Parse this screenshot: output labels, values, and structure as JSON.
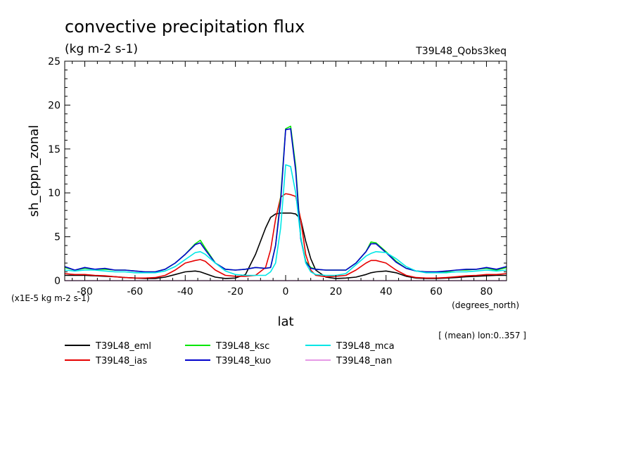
{
  "chart_data": {
    "type": "line",
    "title": "convective precipitation flux",
    "subtitle": "(kg m-2 s-1)",
    "run_label": "T39L48_Qobs3keq",
    "xlabel": "lat",
    "xunits": "(degrees_north)",
    "ylabel": "sh_cppn_zonal",
    "yscale_note": "(x1E-5 kg m-2 s-1)",
    "footnote": "[ (mean) lon:0..357 ]",
    "xlim": [
      -88,
      88
    ],
    "ylim": [
      0,
      25
    ],
    "x_ticks": [
      -80,
      -60,
      -40,
      -20,
      0,
      20,
      40,
      60,
      80
    ],
    "y_ticks": [
      0,
      5,
      10,
      15,
      20,
      25
    ],
    "x": [
      -88,
      -84,
      -80,
      -76,
      -72,
      -68,
      -64,
      -60,
      -56,
      -52,
      -48,
      -44,
      -40,
      -36,
      -34,
      -32,
      -28,
      -24,
      -20,
      -16,
      -12,
      -8,
      -6,
      -4,
      -2,
      0,
      2,
      4,
      6,
      8,
      10,
      12,
      16,
      20,
      24,
      28,
      32,
      34,
      36,
      40,
      44,
      48,
      52,
      56,
      60,
      64,
      68,
      72,
      76,
      80,
      84,
      88
    ],
    "series": [
      {
        "name": "T39L48_eml",
        "color": "#000000",
        "values": [
          0.6,
          0.6,
          0.6,
          0.55,
          0.5,
          0.45,
          0.35,
          0.3,
          0.25,
          0.25,
          0.4,
          0.7,
          1.0,
          1.1,
          1.0,
          0.8,
          0.4,
          0.25,
          0.3,
          0.7,
          3.0,
          6.0,
          7.2,
          7.6,
          7.7,
          7.7,
          7.7,
          7.6,
          7.0,
          4.5,
          2.5,
          1.2,
          0.4,
          0.25,
          0.3,
          0.4,
          0.7,
          0.9,
          1.0,
          1.1,
          0.9,
          0.5,
          0.3,
          0.25,
          0.25,
          0.3,
          0.35,
          0.45,
          0.5,
          0.55,
          0.6,
          0.6
        ]
      },
      {
        "name": "T39L48_ias",
        "color": "#e60000",
        "values": [
          0.8,
          0.7,
          0.7,
          0.6,
          0.55,
          0.45,
          0.35,
          0.3,
          0.3,
          0.35,
          0.6,
          1.2,
          2.0,
          2.3,
          2.4,
          2.2,
          1.2,
          0.6,
          0.5,
          0.5,
          0.6,
          1.5,
          3.5,
          7.0,
          9.5,
          9.9,
          9.8,
          9.6,
          7.0,
          3.0,
          1.2,
          0.6,
          0.45,
          0.5,
          0.6,
          1.2,
          2.0,
          2.3,
          2.3,
          2.0,
          1.2,
          0.6,
          0.35,
          0.3,
          0.3,
          0.35,
          0.45,
          0.55,
          0.6,
          0.7,
          0.7,
          0.8
        ]
      },
      {
        "name": "T39L48_ksc",
        "color": "#00e600",
        "values": [
          1.5,
          1.2,
          1.4,
          1.3,
          1.3,
          1.2,
          1.2,
          1.1,
          1.0,
          1.0,
          1.3,
          2.0,
          3.0,
          4.2,
          4.6,
          3.7,
          2.0,
          1.3,
          1.2,
          1.3,
          1.5,
          1.4,
          1.5,
          4.0,
          9.5,
          17.3,
          17.6,
          13.0,
          5.0,
          2.2,
          1.5,
          1.3,
          1.2,
          1.2,
          1.2,
          2.0,
          3.3,
          4.4,
          4.3,
          3.3,
          2.2,
          1.4,
          1.1,
          1.0,
          1.0,
          1.0,
          1.2,
          1.2,
          1.3,
          1.4,
          1.2,
          1.5
        ]
      },
      {
        "name": "T39L48_kuo",
        "color": "#0000cc",
        "values": [
          1.6,
          1.2,
          1.5,
          1.3,
          1.4,
          1.2,
          1.2,
          1.1,
          1.0,
          1.0,
          1.3,
          2.0,
          3.0,
          4.1,
          4.3,
          3.5,
          2.0,
          1.3,
          1.2,
          1.3,
          1.5,
          1.4,
          1.5,
          4.0,
          9.0,
          17.2,
          17.3,
          12.5,
          4.8,
          2.1,
          1.4,
          1.3,
          1.2,
          1.2,
          1.2,
          2.0,
          3.3,
          4.2,
          4.2,
          3.2,
          2.1,
          1.4,
          1.1,
          1.0,
          1.0,
          1.1,
          1.2,
          1.3,
          1.3,
          1.5,
          1.3,
          1.6
        ]
      },
      {
        "name": "T39L48_mca",
        "color": "#00e6e6",
        "values": [
          1.2,
          1.1,
          1.2,
          1.2,
          1.1,
          1.0,
          1.0,
          0.9,
          0.9,
          0.9,
          1.1,
          1.6,
          2.4,
          3.2,
          3.3,
          3.0,
          2.0,
          1.1,
          0.7,
          0.6,
          0.6,
          0.6,
          1.0,
          2.0,
          6.0,
          13.2,
          13.0,
          10.0,
          5.0,
          2.0,
          1.0,
          0.7,
          0.6,
          0.6,
          0.8,
          1.8,
          2.8,
          3.1,
          3.3,
          3.2,
          2.5,
          1.6,
          1.1,
          0.9,
          0.9,
          0.9,
          1.0,
          1.0,
          1.1,
          1.2,
          1.1,
          1.2
        ]
      },
      {
        "name": "T39L48_nan",
        "color": "#e699e6",
        "values": [
          0,
          0,
          0,
          0,
          0,
          0,
          0,
          0,
          0,
          0,
          0,
          0,
          0,
          0,
          0,
          0,
          0,
          0,
          0,
          0,
          0,
          0,
          0,
          0,
          0,
          0,
          0,
          0,
          0,
          0,
          0,
          0,
          0,
          0,
          0,
          0,
          0,
          0,
          0,
          0,
          0,
          0,
          0,
          0,
          0,
          0,
          0,
          0,
          0,
          0,
          0,
          0
        ]
      }
    ],
    "grid": false,
    "legend_position": "bottom-left"
  }
}
